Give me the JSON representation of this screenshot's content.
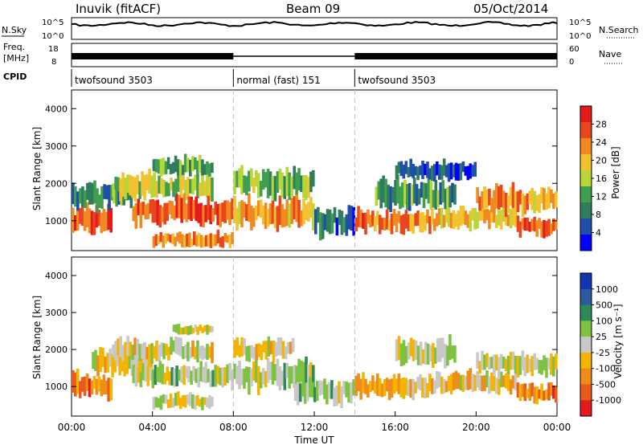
{
  "header": {
    "station": "Inuvik (fitACF)",
    "beam": "Beam 09",
    "date": "05/Oct/2014"
  },
  "strips": {
    "nsky": {
      "left_label": "N.Sky",
      "left_ticks": [
        "10^5",
        "10^0"
      ],
      "right_label": "N.Search",
      "right_ticks": [
        "10^5",
        "10^0"
      ]
    },
    "freq": {
      "left_label_1": "Freq.",
      "left_label_2": "[MHz]",
      "left_ticks": [
        "18",
        "8"
      ],
      "right_label": "Nave",
      "right_ticks": [
        "60",
        "0"
      ]
    },
    "cpid": {
      "label": "CPID",
      "segments": [
        {
          "name": "twofsound 3503",
          "start_h": 0,
          "end_h": 8
        },
        {
          "name": "normal (fast) 151",
          "start_h": 8,
          "end_h": 14
        },
        {
          "name": "twofsound 3503",
          "start_h": 14,
          "end_h": 24
        }
      ]
    }
  },
  "colors": {
    "power_scale": [
      "#0000ff",
      "#1f4fa8",
      "#2f7d5a",
      "#3f9f4f",
      "#b8d63a",
      "#f2c230",
      "#f08a20",
      "#e8461c",
      "#e41a1c"
    ],
    "velocity_scale": [
      "#1236b0",
      "#2c5aa0",
      "#2b8a55",
      "#7fc242",
      "#c8c8c8",
      "#f5b400",
      "#f08c1a",
      "#ea5a1a",
      "#e41a1c"
    ]
  },
  "chart_data": [
    {
      "type": "heatmap",
      "name": "power",
      "ylabel": "Slant Range [km]",
      "yticks": [
        1000,
        2000,
        3000,
        4000
      ],
      "ylim": [
        200,
        4500
      ],
      "xlim": [
        0,
        24
      ],
      "colorbar": {
        "label": "Power [dB]",
        "ticks": [
          "28",
          "24",
          "20",
          "16",
          "12",
          "8",
          "4"
        ],
        "range": [
          0,
          32
        ]
      },
      "bands": [
        {
          "x": [
            0,
            2
          ],
          "y": [
            700,
            1400
          ],
          "value": 26
        },
        {
          "x": [
            0,
            3
          ],
          "y": [
            1300,
            2000
          ],
          "value": 10
        },
        {
          "x": [
            2,
            7
          ],
          "y": [
            1600,
            2300
          ],
          "value": 16
        },
        {
          "x": [
            3,
            8
          ],
          "y": [
            900,
            1600
          ],
          "value": 26
        },
        {
          "x": [
            4,
            8
          ],
          "y": [
            300,
            700
          ],
          "value": 24
        },
        {
          "x": [
            4,
            7
          ],
          "y": [
            2200,
            2700
          ],
          "value": 12
        },
        {
          "x": [
            8,
            12
          ],
          "y": [
            800,
            1600
          ],
          "value": 22
        },
        {
          "x": [
            8,
            12
          ],
          "y": [
            1600,
            2400
          ],
          "value": 14
        },
        {
          "x": [
            12,
            14
          ],
          "y": [
            600,
            1400
          ],
          "value": 8
        },
        {
          "x": [
            14,
            18
          ],
          "y": [
            700,
            1300
          ],
          "value": 24
        },
        {
          "x": [
            15,
            19
          ],
          "y": [
            1300,
            2100
          ],
          "value": 10
        },
        {
          "x": [
            16,
            20
          ],
          "y": [
            2100,
            2600
          ],
          "value": 6
        },
        {
          "x": [
            18,
            22
          ],
          "y": [
            800,
            1400
          ],
          "value": 20
        },
        {
          "x": [
            20,
            24
          ],
          "y": [
            1200,
            1900
          ],
          "value": 22
        },
        {
          "x": [
            22,
            24
          ],
          "y": [
            600,
            1100
          ],
          "value": 26
        }
      ]
    },
    {
      "type": "heatmap",
      "name": "velocity",
      "xlabel": "Time UT",
      "ylabel": "Slant Range [km]",
      "yticks": [
        1000,
        2000,
        3000,
        4000
      ],
      "ylim": [
        200,
        4500
      ],
      "xlim": [
        0,
        24
      ],
      "xticks": [
        "00:00",
        "04:00",
        "08:00",
        "12:00",
        "16:00",
        "20:00",
        "00:00"
      ],
      "colorbar": {
        "label": "Velocity [m s⁻¹]",
        "ticks": [
          "1000",
          "500",
          "100",
          "25",
          "-25",
          "-100",
          "-500",
          "-1000"
        ]
      },
      "bands": [
        {
          "x": [
            0,
            2
          ],
          "y": [
            700,
            1400
          ],
          "value": -500
        },
        {
          "x": [
            1,
            4
          ],
          "y": [
            1300,
            2000
          ],
          "value": -100
        },
        {
          "x": [
            2,
            7
          ],
          "y": [
            1700,
            2300
          ],
          "value": -100
        },
        {
          "x": [
            3,
            8
          ],
          "y": [
            1000,
            1600
          ],
          "value": 100
        },
        {
          "x": [
            4,
            7
          ],
          "y": [
            400,
            800
          ],
          "value": 0
        },
        {
          "x": [
            5,
            7
          ],
          "y": [
            2400,
            2700
          ],
          "value": 0
        },
        {
          "x": [
            8,
            12
          ],
          "y": [
            900,
            1700
          ],
          "value": 100
        },
        {
          "x": [
            8,
            11
          ],
          "y": [
            1700,
            2300
          ],
          "value": -100
        },
        {
          "x": [
            11,
            14
          ],
          "y": [
            500,
            1200
          ],
          "value": 100
        },
        {
          "x": [
            14,
            18
          ],
          "y": [
            700,
            1300
          ],
          "value": -300
        },
        {
          "x": [
            16,
            19
          ],
          "y": [
            1600,
            2300
          ],
          "value": 0
        },
        {
          "x": [
            18,
            22
          ],
          "y": [
            800,
            1400
          ],
          "value": -150
        },
        {
          "x": [
            20,
            24
          ],
          "y": [
            1300,
            1900
          ],
          "value": 0
        },
        {
          "x": [
            22,
            24
          ],
          "y": [
            600,
            1100
          ],
          "value": -500
        }
      ]
    }
  ]
}
